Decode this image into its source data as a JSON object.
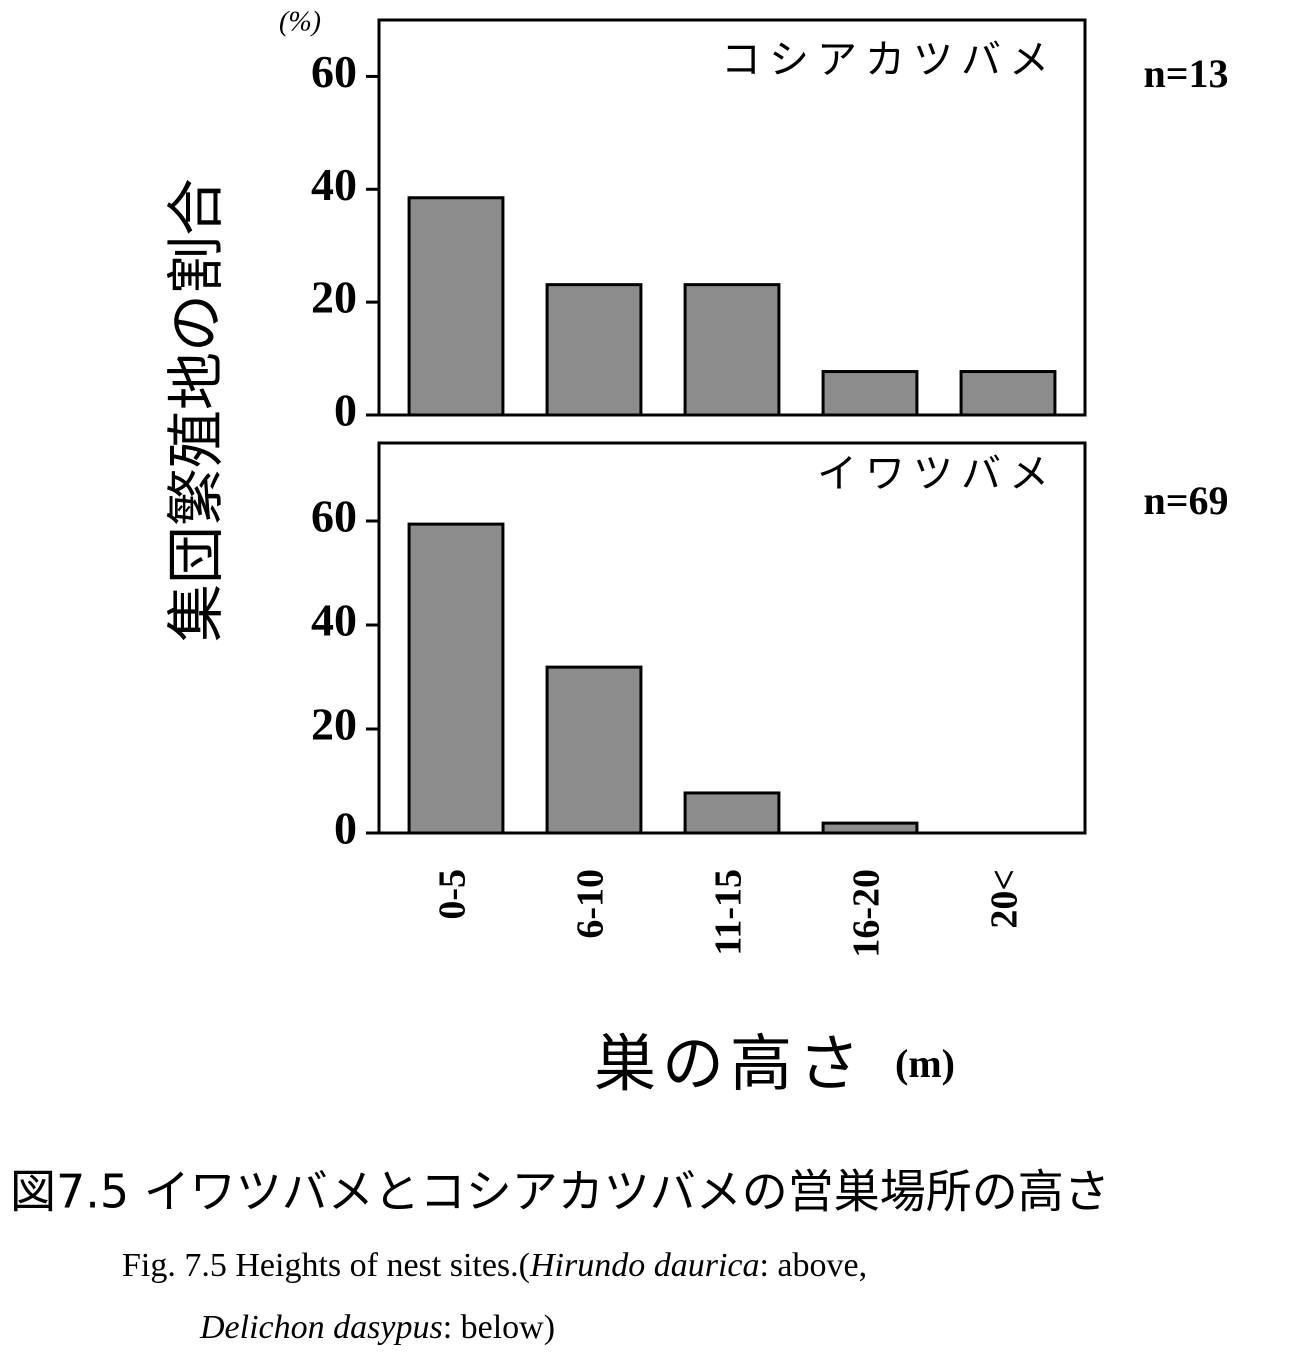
{
  "chart_data": [
    {
      "type": "bar",
      "title": "コシアカツバメ",
      "annotation": "n=13",
      "ylabel": "集団繁殖地の割合",
      "yunit": "(%)",
      "values": [
        38.5,
        23.1,
        23.1,
        7.7,
        7.7
      ],
      "color": "#8c8c8c",
      "ylim": [
        0,
        70
      ],
      "yticks": [
        0,
        20,
        40,
        60
      ]
    },
    {
      "type": "bar",
      "title": "イワツバメ",
      "annotation": "n=69",
      "xlabel": "巣の高さ",
      "xunit": "(m)",
      "categories": [
        "0-5",
        "6-10",
        "11-15",
        "16-20",
        "20<"
      ],
      "values": [
        59.4,
        31.9,
        7.7,
        1.9,
        0
      ],
      "color": "#8c8c8c",
      "ylim": [
        0,
        75
      ],
      "yticks": [
        0,
        20,
        40,
        60
      ]
    }
  ],
  "caption": {
    "jp": "図7.5 イワツバメとコシアカツバメの営巣場所の高さ",
    "en_line1": [
      "Fig. 7.5   Heights of nest sites.(",
      "Hirundo daurica",
      ": above,"
    ],
    "en_line2": [
      "Delichon  dasypus",
      ":  below)"
    ]
  }
}
